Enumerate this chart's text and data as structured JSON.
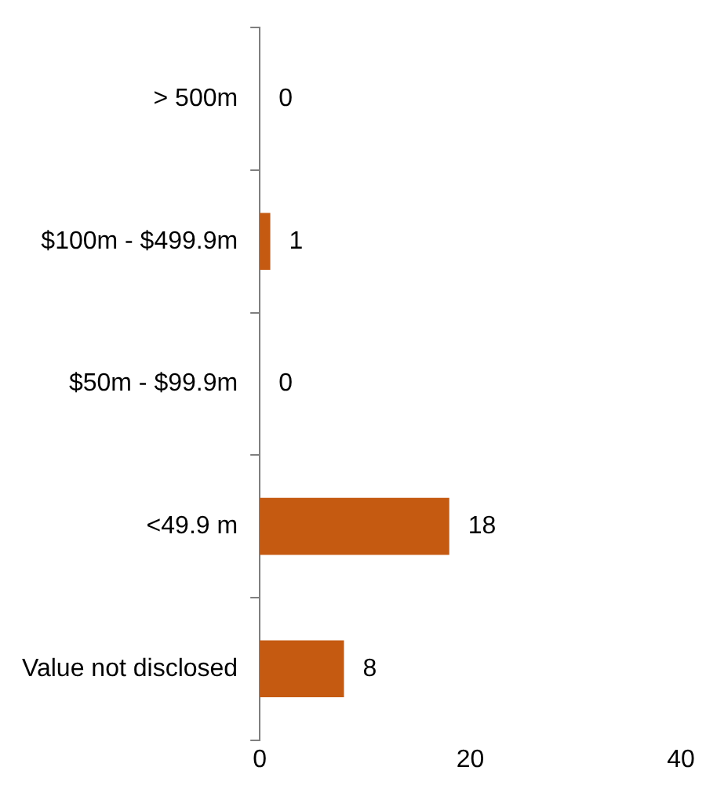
{
  "chart_data": {
    "type": "bar",
    "orientation": "horizontal",
    "categories": [
      "> 500m",
      "$100m - $499.9m",
      "$50m - $99.9m",
      "<49.9 m",
      "Value not disclosed"
    ],
    "values": [
      0,
      1,
      0,
      18,
      8
    ],
    "color": "#c55a11",
    "xlim": [
      0,
      40
    ],
    "xticks": [
      0,
      20,
      40
    ],
    "data_labels": true,
    "grid": false,
    "legend": false
  }
}
